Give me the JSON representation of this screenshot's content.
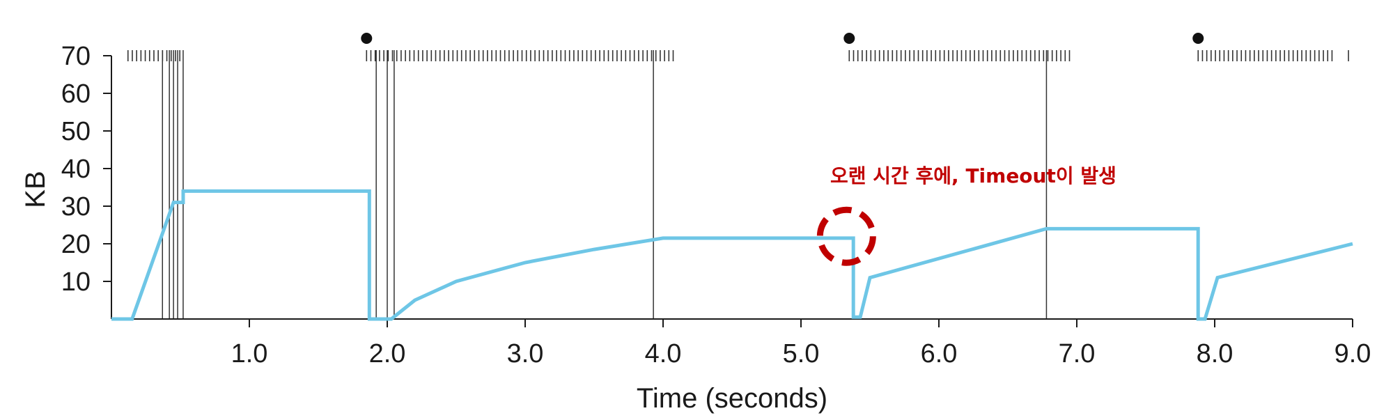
{
  "chart_data": {
    "type": "line",
    "title": "",
    "xlabel": "Time (seconds)",
    "ylabel": "KB",
    "xlim": [
      0,
      9.0
    ],
    "ylim": [
      0,
      70
    ],
    "x_ticks": [
      1.0,
      2.0,
      3.0,
      4.0,
      5.0,
      6.0,
      7.0,
      8.0,
      9.0
    ],
    "x_tick_labels": [
      "1.0",
      "2.0",
      "3.0",
      "4.0",
      "5.0",
      "6.0",
      "7.0",
      "8.0",
      "9.0"
    ],
    "y_ticks": [
      10,
      20,
      30,
      40,
      50,
      60,
      70
    ],
    "y_tick_labels": [
      "10",
      "20",
      "30",
      "40",
      "50",
      "60",
      "70"
    ],
    "grid": false,
    "legend": "none",
    "line_color": "#6ec6e6",
    "annotation_color": "#c00000",
    "series": [
      {
        "x": [
          0.0,
          0.15,
          0.45,
          0.52,
          0.52,
          1.87,
          1.87,
          2.03,
          2.2,
          2.5,
          3.0,
          3.5,
          4.0,
          5.38,
          5.38,
          5.43,
          5.5,
          6.78,
          7.88,
          7.88,
          7.93,
          8.02,
          9.0
        ],
        "y": [
          0,
          0,
          31,
          31,
          34,
          34,
          0,
          0,
          5,
          10,
          15,
          18.5,
          21.5,
          21.5,
          0.5,
          0.5,
          11,
          24,
          24,
          0,
          0,
          11,
          20
        ]
      }
    ],
    "markers_x": [
      1.85,
      5.35,
      7.88
    ],
    "vertical_lines_x": [
      0.37,
      0.42,
      0.45,
      0.48,
      0.52,
      1.92,
      2.0,
      2.05,
      3.93,
      6.78
    ],
    "packet_tick_ranges": [
      {
        "start": 0.12,
        "end": 0.52
      },
      {
        "start": 1.85,
        "end": 4.1
      },
      {
        "start": 5.35,
        "end": 6.95
      },
      {
        "start": 7.88,
        "end": 8.88
      }
    ],
    "packet_tick_extra_x": [
      8.97
    ],
    "annotation": {
      "text": "오랜 시간 후에, Timeout이 발생",
      "target_x": 5.33,
      "target_y": 22
    }
  }
}
